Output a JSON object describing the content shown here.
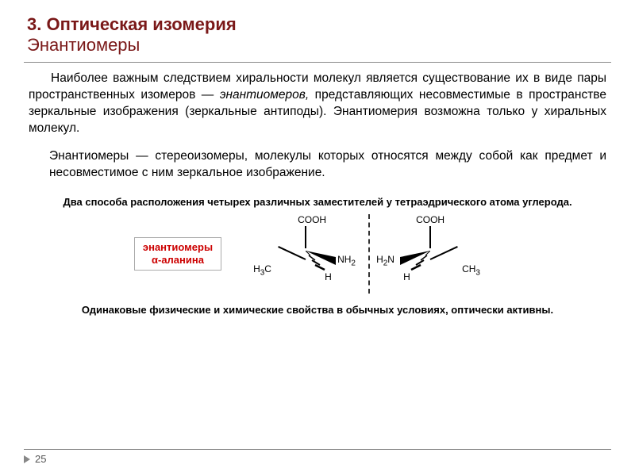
{
  "title": {
    "line1": "3. Оптическая изомерия",
    "line2": "Энантиомеры"
  },
  "paragraph1_html": "Наиболее важным следствием хиральности молекул является существование их в виде пары пространственных изомеров — <em class='it'>энантиомеров,</em> представляющих несовместимые в пространстве зеркальные изображения (зеркальные антиподы). Энантиомерия возможна только у хиральных молекул.",
  "definition_html": "Энантиомеры — стереоизомеры, молекулы которых относятся между собой как предмет и несовместимое с ним зеркальное изображение.",
  "subhead": "Два способа расположения четырех различных заместителей у тетраэдрического атома углерода.",
  "label_box": {
    "line1": "энантиомеры",
    "line2": "α-аланина"
  },
  "molecule": {
    "groups": {
      "top": "COOH",
      "left": "H₃C",
      "right": "CH₃",
      "amine": "NH₂",
      "h": "H"
    },
    "colors": {
      "line": "#000000",
      "text": "#000000"
    }
  },
  "caption": "Одинаковые физические и химические свойства в обычных условиях, оптически активны.",
  "page_number": "25",
  "colors": {
    "title": "#7a1818",
    "accent": "#cc0000",
    "rule": "#888888",
    "text": "#000000",
    "background": "#ffffff"
  }
}
